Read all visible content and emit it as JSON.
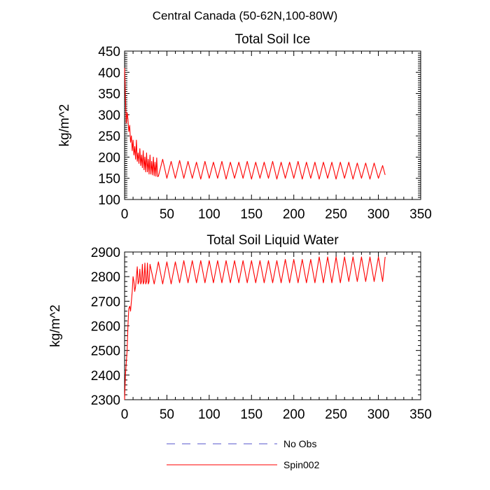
{
  "figure": {
    "main_title": "Central Canada (50-62N,100-80W)"
  },
  "chart_data": [
    {
      "type": "line",
      "title": "Total Soil Ice",
      "ylabel": "kg/m^2",
      "xlabel": "",
      "xlim": [
        0,
        350
      ],
      "ylim": [
        100,
        450
      ],
      "xticks": [
        0,
        50,
        100,
        150,
        200,
        250,
        300,
        350
      ],
      "yticks": [
        100,
        150,
        200,
        250,
        300,
        350,
        400,
        450
      ],
      "series": [
        {
          "name": "Spin002",
          "color": "#ff0000",
          "x": [
            0,
            1,
            2,
            3,
            4,
            5,
            6,
            7,
            8,
            9,
            10,
            11,
            12,
            13,
            14,
            15,
            16,
            17,
            18,
            19,
            20,
            21,
            22,
            23,
            24,
            25,
            26,
            27,
            28,
            29,
            30,
            31,
            32,
            33,
            34,
            35,
            36,
            37,
            38,
            39,
            40,
            45,
            50,
            55,
            60,
            65,
            70,
            75,
            80,
            85,
            90,
            95,
            100,
            105,
            110,
            115,
            120,
            125,
            130,
            135,
            140,
            145,
            150,
            155,
            160,
            165,
            170,
            175,
            180,
            185,
            190,
            195,
            200,
            205,
            210,
            215,
            220,
            225,
            230,
            235,
            240,
            245,
            250,
            255,
            260,
            265,
            270,
            275,
            280,
            285,
            290,
            295,
            300,
            305,
            308
          ],
          "y": [
            410,
            340,
            280,
            305,
            290,
            260,
            275,
            235,
            250,
            215,
            240,
            205,
            225,
            195,
            240,
            190,
            210,
            185,
            220,
            180,
            205,
            175,
            215,
            170,
            200,
            165,
            210,
            165,
            195,
            160,
            205,
            160,
            190,
            158,
            200,
            156,
            188,
            155,
            198,
            154,
            155,
            195,
            150,
            190,
            150,
            192,
            150,
            190,
            150,
            188,
            148,
            190,
            150,
            188,
            150,
            190,
            148,
            188,
            150,
            188,
            150,
            190,
            148,
            188,
            150,
            188,
            150,
            190,
            148,
            188,
            150,
            188,
            150,
            190,
            148,
            188,
            150,
            188,
            148,
            188,
            150,
            188,
            148,
            188,
            150,
            188,
            148,
            186,
            150,
            186,
            148,
            186,
            150,
            180,
            158
          ]
        }
      ]
    },
    {
      "type": "line",
      "title": "Total Soil Liquid Water",
      "ylabel": "kg/m^2",
      "xlabel": "",
      "xlim": [
        0,
        350
      ],
      "ylim": [
        2300,
        2900
      ],
      "xticks": [
        0,
        50,
        100,
        150,
        200,
        250,
        300,
        350
      ],
      "yticks": [
        2300,
        2400,
        2500,
        2600,
        2700,
        2800,
        2900
      ],
      "series": [
        {
          "name": "Spin002",
          "color": "#ff0000",
          "x": [
            0,
            1,
            2,
            3,
            4,
            5,
            6,
            7,
            8,
            9,
            10,
            11,
            12,
            13,
            14,
            15,
            16,
            17,
            18,
            19,
            20,
            21,
            22,
            23,
            24,
            25,
            26,
            27,
            28,
            29,
            30,
            35,
            40,
            45,
            50,
            55,
            60,
            65,
            70,
            75,
            80,
            85,
            90,
            95,
            100,
            105,
            110,
            115,
            120,
            125,
            130,
            135,
            140,
            145,
            150,
            155,
            160,
            165,
            170,
            175,
            180,
            185,
            190,
            195,
            200,
            205,
            210,
            215,
            220,
            225,
            230,
            235,
            240,
            245,
            250,
            255,
            260,
            265,
            270,
            275,
            280,
            285,
            290,
            295,
            300,
            305,
            308
          ],
          "y": [
            2300,
            2400,
            2450,
            2500,
            2600,
            2670,
            2680,
            2660,
            2700,
            2740,
            2800,
            2780,
            2740,
            2760,
            2800,
            2840,
            2770,
            2780,
            2830,
            2770,
            2780,
            2850,
            2770,
            2780,
            2855,
            2770,
            2780,
            2855,
            2770,
            2780,
            2850,
            2770,
            2860,
            2770,
            2860,
            2770,
            2860,
            2775,
            2865,
            2775,
            2865,
            2775,
            2865,
            2775,
            2865,
            2775,
            2865,
            2775,
            2865,
            2775,
            2865,
            2775,
            2865,
            2775,
            2865,
            2775,
            2865,
            2775,
            2865,
            2775,
            2865,
            2775,
            2870,
            2775,
            2870,
            2775,
            2870,
            2775,
            2870,
            2775,
            2880,
            2775,
            2880,
            2775,
            2880,
            2775,
            2880,
            2780,
            2880,
            2780,
            2880,
            2780,
            2880,
            2780,
            2880,
            2780,
            2880
          ]
        }
      ]
    }
  ],
  "legend": {
    "items": [
      {
        "label": "No Obs",
        "color": "#5555cc",
        "dash": true
      },
      {
        "label": "Spin002",
        "color": "#ff0000",
        "dash": false
      }
    ]
  }
}
